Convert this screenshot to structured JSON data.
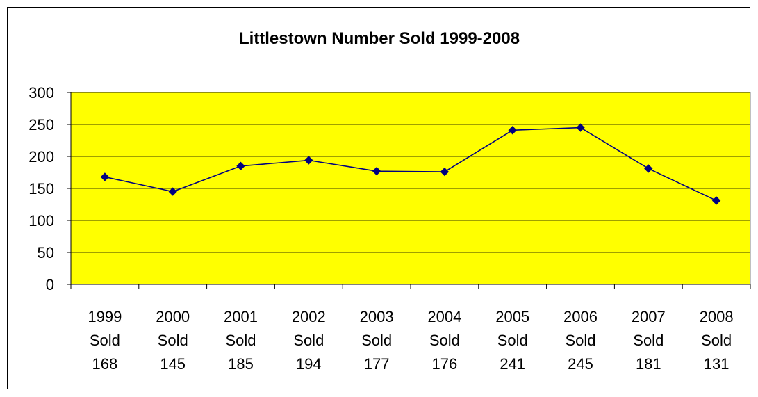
{
  "chart_data": {
    "type": "line",
    "title": "Littlestown Number Sold 1999-2008",
    "xlabel": "",
    "ylabel": "",
    "ylim": [
      0,
      300
    ],
    "yticks": [
      0,
      50,
      100,
      150,
      200,
      250,
      300
    ],
    "grid": true,
    "legend": "none",
    "categories": [
      [
        "1999",
        "Sold",
        "168"
      ],
      [
        "2000",
        "Sold",
        "145"
      ],
      [
        "2001",
        "Sold",
        "185"
      ],
      [
        "2002",
        "Sold",
        "194"
      ],
      [
        "2003",
        "Sold",
        "177"
      ],
      [
        "2004",
        "Sold",
        "176"
      ],
      [
        "2005",
        "Sold",
        "241"
      ],
      [
        "2006",
        "Sold",
        "245"
      ],
      [
        "2007",
        "Sold",
        "181"
      ],
      [
        "2008",
        "Sold",
        "131"
      ]
    ],
    "series": [
      {
        "values": [
          168,
          145,
          185,
          194,
          177,
          176,
          241,
          245,
          181,
          131
        ]
      }
    ],
    "colors": {
      "plot_background": "#FFFF00",
      "line": "#000080",
      "marker": "#000080",
      "gridline": "#000000"
    }
  }
}
